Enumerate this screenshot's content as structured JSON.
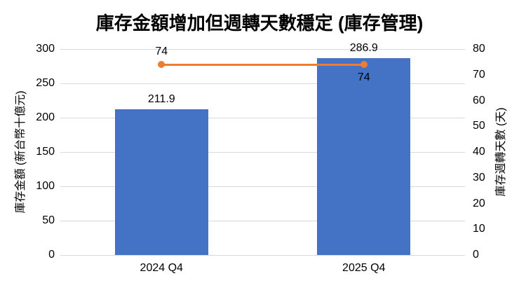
{
  "chart_data": {
    "type": "bar",
    "subtype": "combo-bar-line",
    "title": "庫存金額增加但週轉天數穩定 (庫存管理)",
    "categories": [
      "2024 Q4",
      "2025 Q4"
    ],
    "series": [
      {
        "type": "bar",
        "axis": "left",
        "values": [
          211.9,
          286.9
        ],
        "labels": [
          "211.9",
          "286.9"
        ],
        "color": "#4472C4"
      },
      {
        "type": "line",
        "axis": "right",
        "values": [
          74,
          74
        ],
        "labels": [
          "74",
          "74"
        ],
        "label_positions": [
          "above",
          "below"
        ],
        "color": "#ED7D31"
      }
    ],
    "left_axis": {
      "title": "庫存金額 (新台幣十億元)",
      "min": 0,
      "max": 300,
      "ticks": [
        0,
        50,
        100,
        150,
        200,
        250,
        300
      ]
    },
    "right_axis": {
      "title": "庫存週轉天數 (天)",
      "min": 0,
      "max": 80,
      "ticks": [
        0,
        10,
        20,
        30,
        40,
        50,
        60,
        70,
        80
      ]
    },
    "grid": true,
    "legend": "none",
    "colors": {
      "bar": "#4472C4",
      "line": "#ED7D31",
      "gridline": "#d9d9d9",
      "text": "#000000",
      "background": "#ffffff"
    }
  }
}
